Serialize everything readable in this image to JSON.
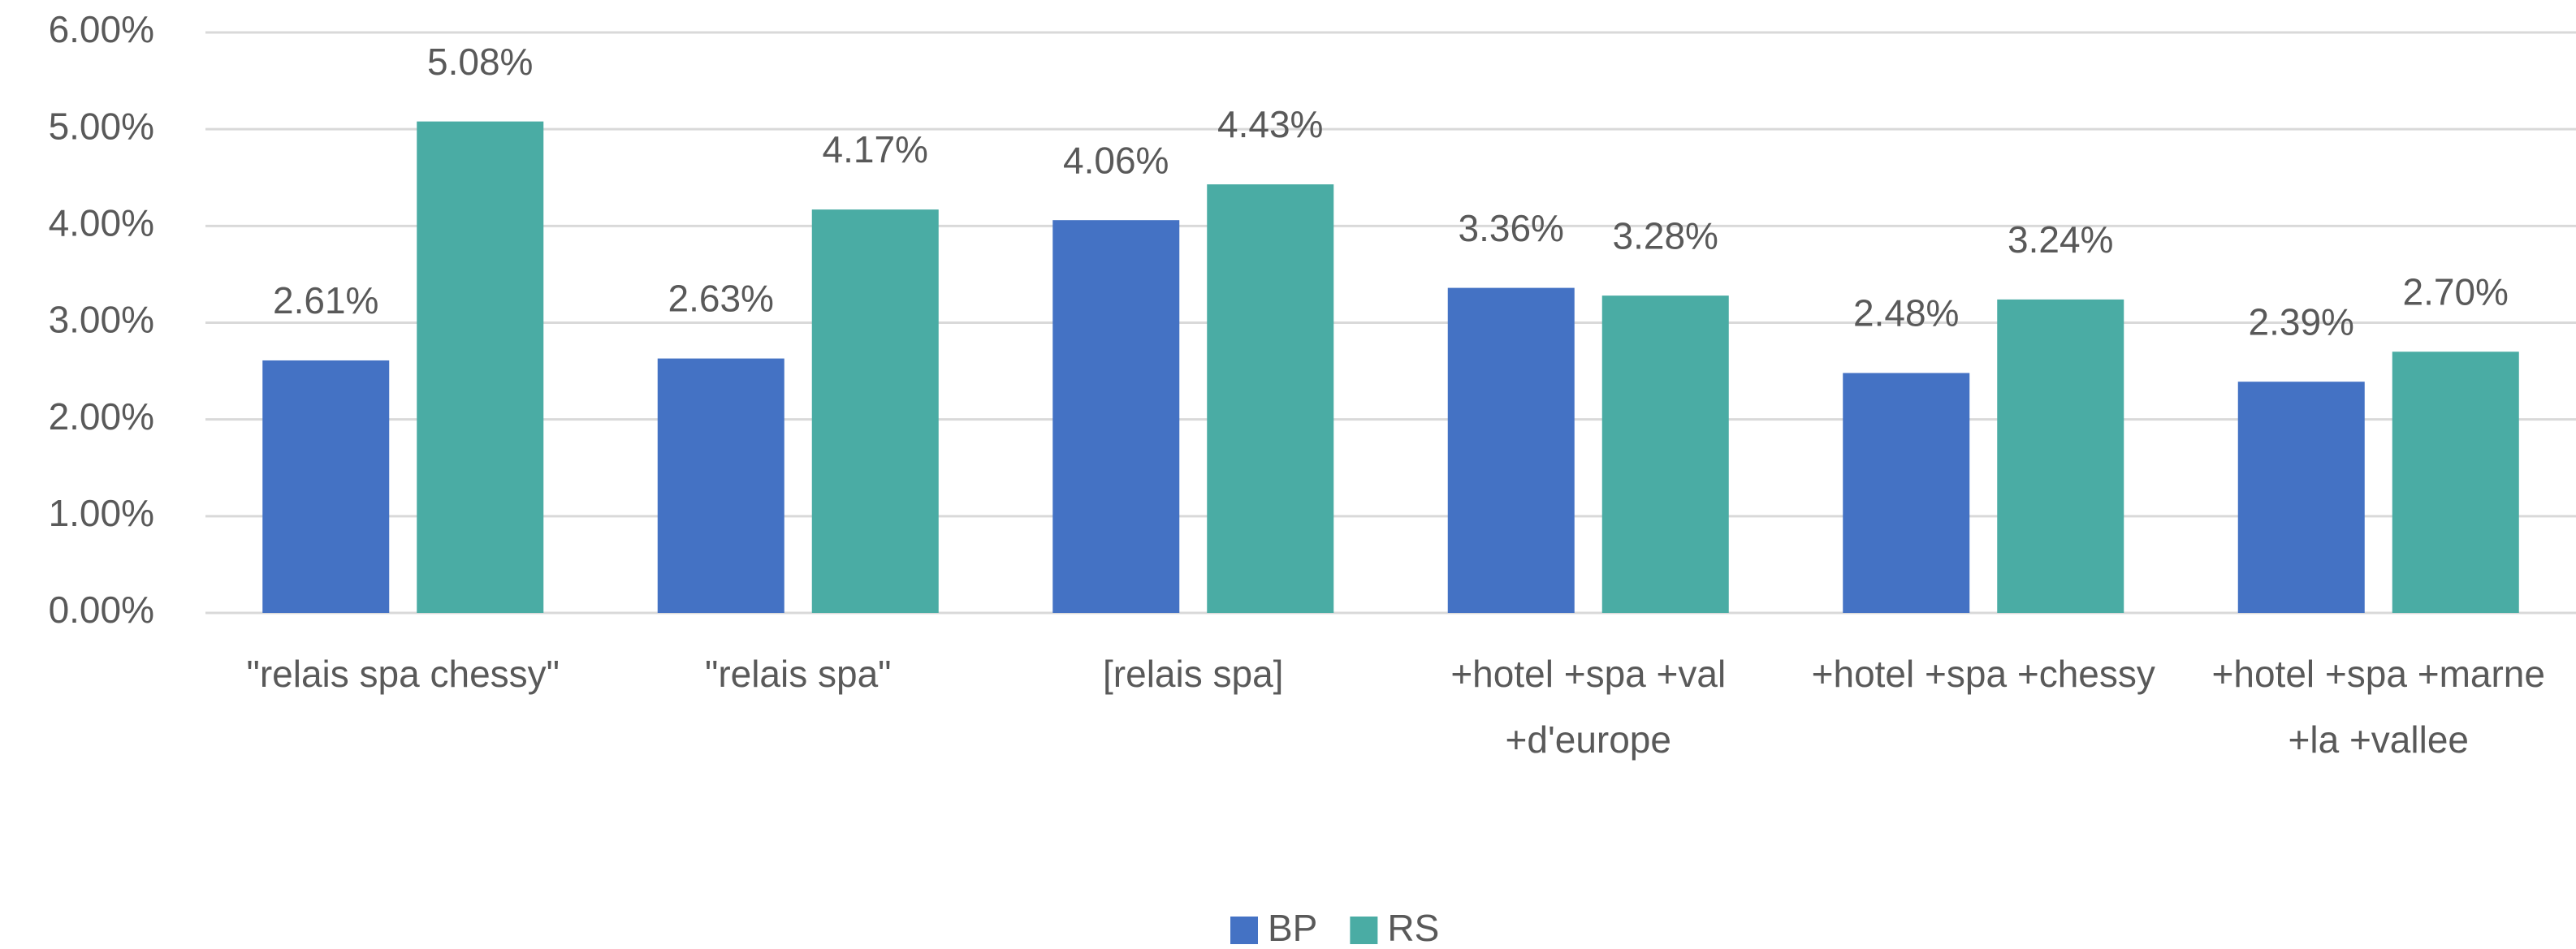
{
  "chart_data": {
    "type": "bar",
    "categories": [
      "\"relais spa chessy\"",
      "\"relais spa\"",
      "[relais spa]",
      "+hotel +spa +val +d'europe",
      "+hotel +spa +chessy",
      "+hotel +spa +marne +la +vallee"
    ],
    "series": [
      {
        "name": "BP",
        "color": "#4472c4",
        "values": [
          2.61,
          2.63,
          4.06,
          3.36,
          2.48,
          2.39
        ],
        "value_labels": [
          "2.61%",
          "2.63%",
          "4.06%",
          "3.36%",
          "2.48%",
          "2.39%"
        ]
      },
      {
        "name": "RS",
        "color": "#4aaca4",
        "values": [
          5.08,
          4.17,
          4.43,
          3.28,
          3.24,
          2.7
        ],
        "value_labels": [
          "5.08%",
          "4.17%",
          "4.43%",
          "3.28%",
          "3.24%",
          "2.70%"
        ]
      }
    ],
    "ylim": [
      0,
      6
    ],
    "yticks": [
      {
        "value": 0,
        "label": "0.00%"
      },
      {
        "value": 1,
        "label": "1.00%"
      },
      {
        "value": 2,
        "label": "2.00%"
      },
      {
        "value": 3,
        "label": "3.00%"
      },
      {
        "value": 4,
        "label": "4.00%"
      },
      {
        "value": 5,
        "label": "5.00%"
      },
      {
        "value": 6,
        "label": "6.00%"
      }
    ],
    "grid": true,
    "legend": "bottom"
  }
}
